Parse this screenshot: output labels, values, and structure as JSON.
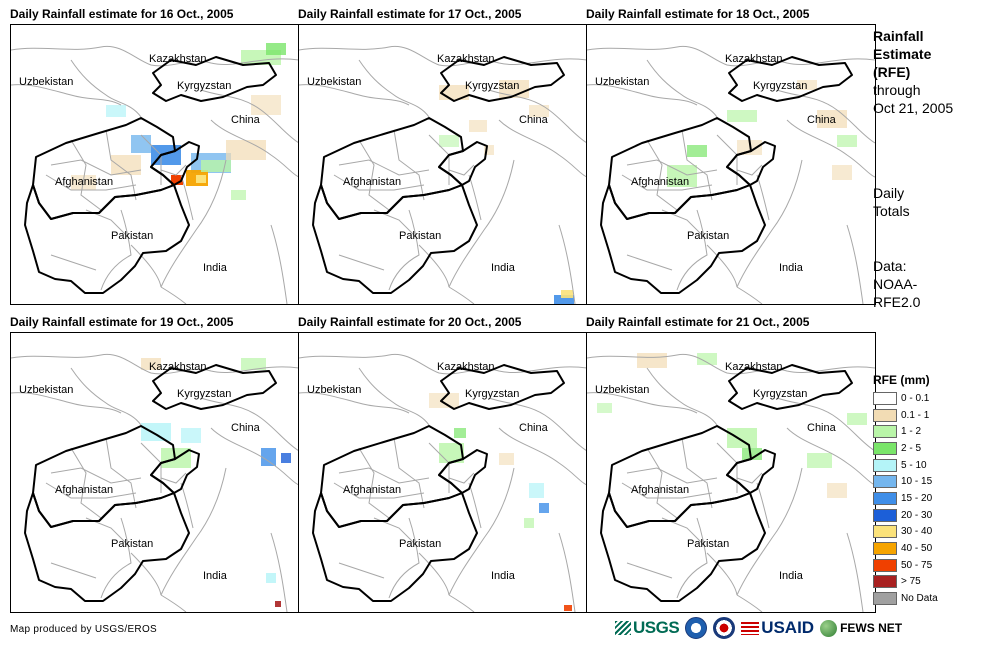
{
  "panels": [
    {
      "title": "Daily Rainfall estimate for 16 Oct., 2005"
    },
    {
      "title": "Daily Rainfall estimate for 17 Oct., 2005"
    },
    {
      "title": "Daily Rainfall estimate for 18 Oct., 2005"
    },
    {
      "title": "Daily Rainfall estimate for 19 Oct., 2005"
    },
    {
      "title": "Daily Rainfall estimate for 20 Oct., 2005"
    },
    {
      "title": "Daily Rainfall estimate for 21 Oct., 2005"
    }
  ],
  "map_labels": {
    "kazakhstan": "Kazakhstan",
    "uzbekistan": "Uzbekistan",
    "kyrgyzstan": "Kyrgyzstan",
    "china": "China",
    "afghanistan": "Afghanistan",
    "pakistan": "Pakistan",
    "india": "India"
  },
  "side": {
    "title_line1": "Rainfall",
    "title_line2": "Estimate",
    "title_line3": "(RFE)",
    "through": "through",
    "date": "Oct 21, 2005",
    "daily_line1": "Daily",
    "daily_line2": "Totals",
    "data_line1": "Data:",
    "data_line2": "NOAA-",
    "data_line3": "RFE2.0"
  },
  "legend": {
    "title": "RFE (mm)",
    "items": [
      {
        "label": "0 - 0.1",
        "color": "#ffffff"
      },
      {
        "label": "0.1 - 1",
        "color": "#f2dcb4"
      },
      {
        "label": "1 - 2",
        "color": "#b9f5a8"
      },
      {
        "label": "2 - 5",
        "color": "#7ae56a"
      },
      {
        "label": "5 - 10",
        "color": "#b4f4f8"
      },
      {
        "label": "10 - 15",
        "color": "#74b6ee"
      },
      {
        "label": "15 - 20",
        "color": "#3f8ee8"
      },
      {
        "label": "20 - 30",
        "color": "#1c5fd8"
      },
      {
        "label": "30 - 40",
        "color": "#fbe27a"
      },
      {
        "label": "40 - 50",
        "color": "#f6a400"
      },
      {
        "label": "50 - 75",
        "color": "#f04000"
      },
      {
        "label": "> 75",
        "color": "#a82020"
      },
      {
        "label": "No Data",
        "color": "#a0a0a0"
      }
    ]
  },
  "credit": "Map produced by USGS/EROS",
  "logos": {
    "usgs": "USGS",
    "usaid": "USAID",
    "fews": "FEWS NET",
    "usgs_icon": "usgs-waves-icon",
    "noaa_icon": "noaa-logo-icon",
    "nws_icon": "nws-logo-icon",
    "fews_icon": "globe-icon"
  }
}
